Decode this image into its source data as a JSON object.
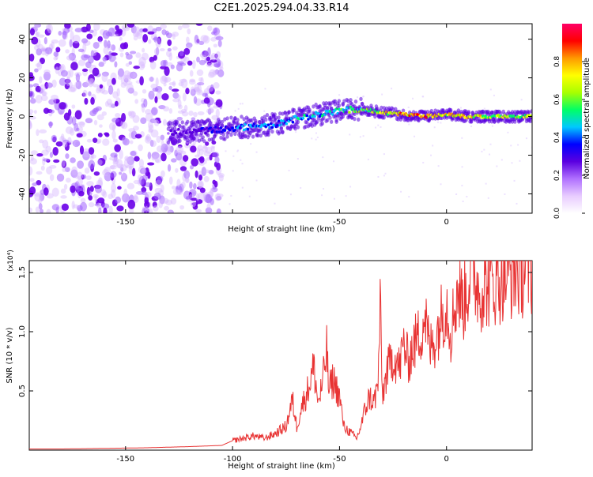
{
  "title": "C2E1.2025.294.04.33.R14",
  "chart_data": [
    {
      "type": "heatmap",
      "xlabel": "Height of straight line (km)",
      "ylabel": "Frequency (Hz)",
      "xlim": [
        -195,
        40
      ],
      "ylim": [
        -50,
        48
      ],
      "xticks": [
        -150,
        -100,
        -50,
        0
      ],
      "xtick_labels": [
        "-150",
        "",
        "-50",
        "0"
      ],
      "yticks": [
        -40,
        -20,
        0,
        20,
        40
      ],
      "ytick_labels": [
        "-40",
        "-20",
        "0",
        "20",
        "40"
      ],
      "colorbar": {
        "label": "Normalized spectral amplitude",
        "range": [
          0,
          1
        ],
        "ticks": [
          0,
          0.2,
          0.4,
          0.6,
          0.8
        ],
        "tick_labels": [
          "0.0",
          "0.2",
          "0.4",
          "0.6",
          "0.8"
        ],
        "colors": [
          "#ffffff",
          "#e8ccff",
          "#b070ff",
          "#5a00e0",
          "#0000ff",
          "#00c8ff",
          "#00ff66",
          "#a8ff00",
          "#ffff00",
          "#ff9900",
          "#ff0000",
          "#ff0066"
        ]
      },
      "ridge": {
        "x": [
          -130,
          -120,
          -110,
          -100,
          -90,
          -80,
          -70,
          -60,
          -50,
          -40,
          -30,
          -20,
          -10,
          0,
          10,
          20,
          30,
          40
        ],
        "y": [
          -8,
          -8,
          -7,
          -6,
          -5,
          -4,
          -1,
          1,
          3,
          4,
          2,
          1,
          0,
          1,
          0,
          0,
          0,
          0
        ],
        "amplitude": [
          0.25,
          0.3,
          0.35,
          0.4,
          0.42,
          0.45,
          0.5,
          0.5,
          0.55,
          0.6,
          0.7,
          0.85,
          0.85,
          0.75,
          0.8,
          0.7,
          0.65,
          0.65
        ]
      },
      "noise_region": {
        "x": [
          -195,
          -105
        ],
        "ylim": [
          -50,
          48
        ]
      },
      "grid": false
    },
    {
      "type": "line",
      "xlabel": "Height of straight line (km)",
      "ylabel": "SNR (10 * v/v)",
      "scale_label": "(x10⁴)",
      "xlim": [
        -195,
        40
      ],
      "ylim": [
        0,
        1.6
      ],
      "xticks": [
        -150,
        -100,
        -50,
        0
      ],
      "xtick_labels": [
        "-150",
        "-100",
        "-50",
        "0"
      ],
      "yticks": [
        0.5,
        1.0,
        1.5
      ],
      "ytick_labels": [
        "0.5",
        "1.0",
        "1.5"
      ],
      "line_color": "#e83333",
      "series": [
        {
          "x": [
            -195,
            -180,
            -160,
            -140,
            -120,
            -105,
            -100,
            -95,
            -90,
            -85,
            -80,
            -75,
            -72,
            -70,
            -68,
            -65,
            -62,
            -60,
            -58,
            -56,
            -55,
            -53,
            -50,
            -48,
            -45,
            -42,
            -40,
            -38,
            -36,
            -34,
            -32,
            -31,
            -30,
            -28,
            -25,
            -22,
            -20,
            -18,
            -15,
            -12,
            -10,
            -8,
            -5,
            -3,
            -1,
            0,
            2,
            5,
            8,
            10,
            12,
            15,
            20,
            25,
            30,
            35,
            40
          ],
          "y": [
            0.01,
            0.01,
            0.015,
            0.02,
            0.03,
            0.04,
            0.08,
            0.1,
            0.12,
            0.1,
            0.14,
            0.2,
            0.42,
            0.2,
            0.35,
            0.5,
            0.7,
            0.4,
            0.55,
            0.85,
            0.5,
            0.6,
            0.45,
            0.2,
            0.15,
            0.1,
            0.2,
            0.35,
            0.45,
            0.4,
            0.55,
            1.22,
            0.45,
            0.65,
            0.8,
            0.7,
            0.9,
            0.75,
            0.9,
            1.0,
            1.15,
            0.85,
            0.95,
            1.1,
            1.2,
            1.25,
            1.0,
            1.35,
            1.25,
            1.4,
            1.58,
            1.35,
            1.4,
            1.45,
            1.5,
            1.52,
            1.53
          ]
        }
      ]
    }
  ]
}
